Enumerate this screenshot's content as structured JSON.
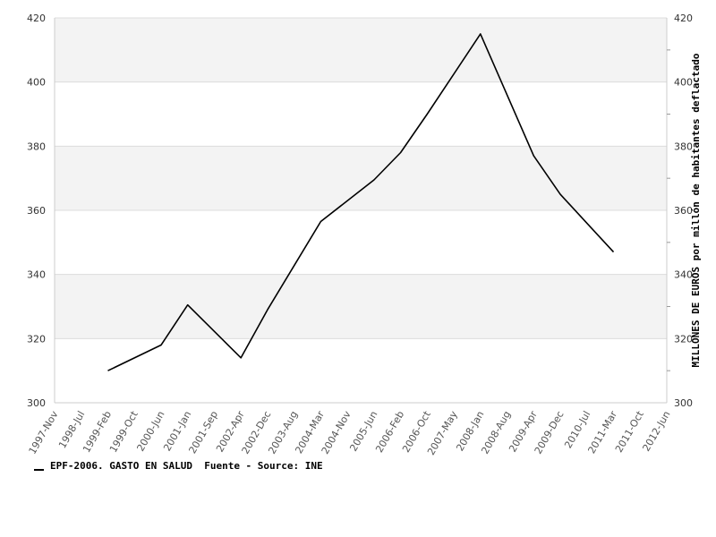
{
  "chart_data": {
    "type": "line",
    "title": "",
    "xlabel": "",
    "ylabel_right": "MILLONES DE EUROS por millón de habitantes deflactado",
    "ylim": [
      300,
      420
    ],
    "y_ticks": [
      "300",
      "320",
      "340",
      "360",
      "380",
      "400",
      "420"
    ],
    "x_tick_labels": [
      "1997-Nov",
      "1998-Jul",
      "1999-Feb",
      "1999-Oct",
      "2000-Jun",
      "2001-Jan",
      "2001-Sep",
      "2002-Apr",
      "2002-Dec",
      "2003-Aug",
      "2004-Mar",
      "2004-Nov",
      "2005-Jun",
      "2006-Feb",
      "2006-Oct",
      "2007-May",
      "2008-Jan",
      "2008-Aug",
      "2009-Apr",
      "2009-Dec",
      "2010-Jul",
      "2011-Mar",
      "2011-Oct",
      "2012-Jun"
    ],
    "grid": true,
    "legend_position": "bottom-left",
    "series": [
      {
        "name": "EPF-2006. GASTO EN SALUD",
        "color": "#000000",
        "x": [
          "1999-Feb",
          "2000-Jun",
          "2001-Jan",
          "2002-Apr",
          "2002-Dec",
          "2004-Mar",
          "2005-Jun",
          "2006-Feb",
          "2006-Oct",
          "2008-Jan",
          "2009-Apr",
          "2009-Dec",
          "2011-Mar"
        ],
        "values": [
          310,
          318,
          330.5,
          314,
          329,
          356.5,
          369.5,
          378,
          390,
          415,
          377,
          365,
          347
        ]
      }
    ],
    "source_text": "Fuente - Source: INE"
  }
}
